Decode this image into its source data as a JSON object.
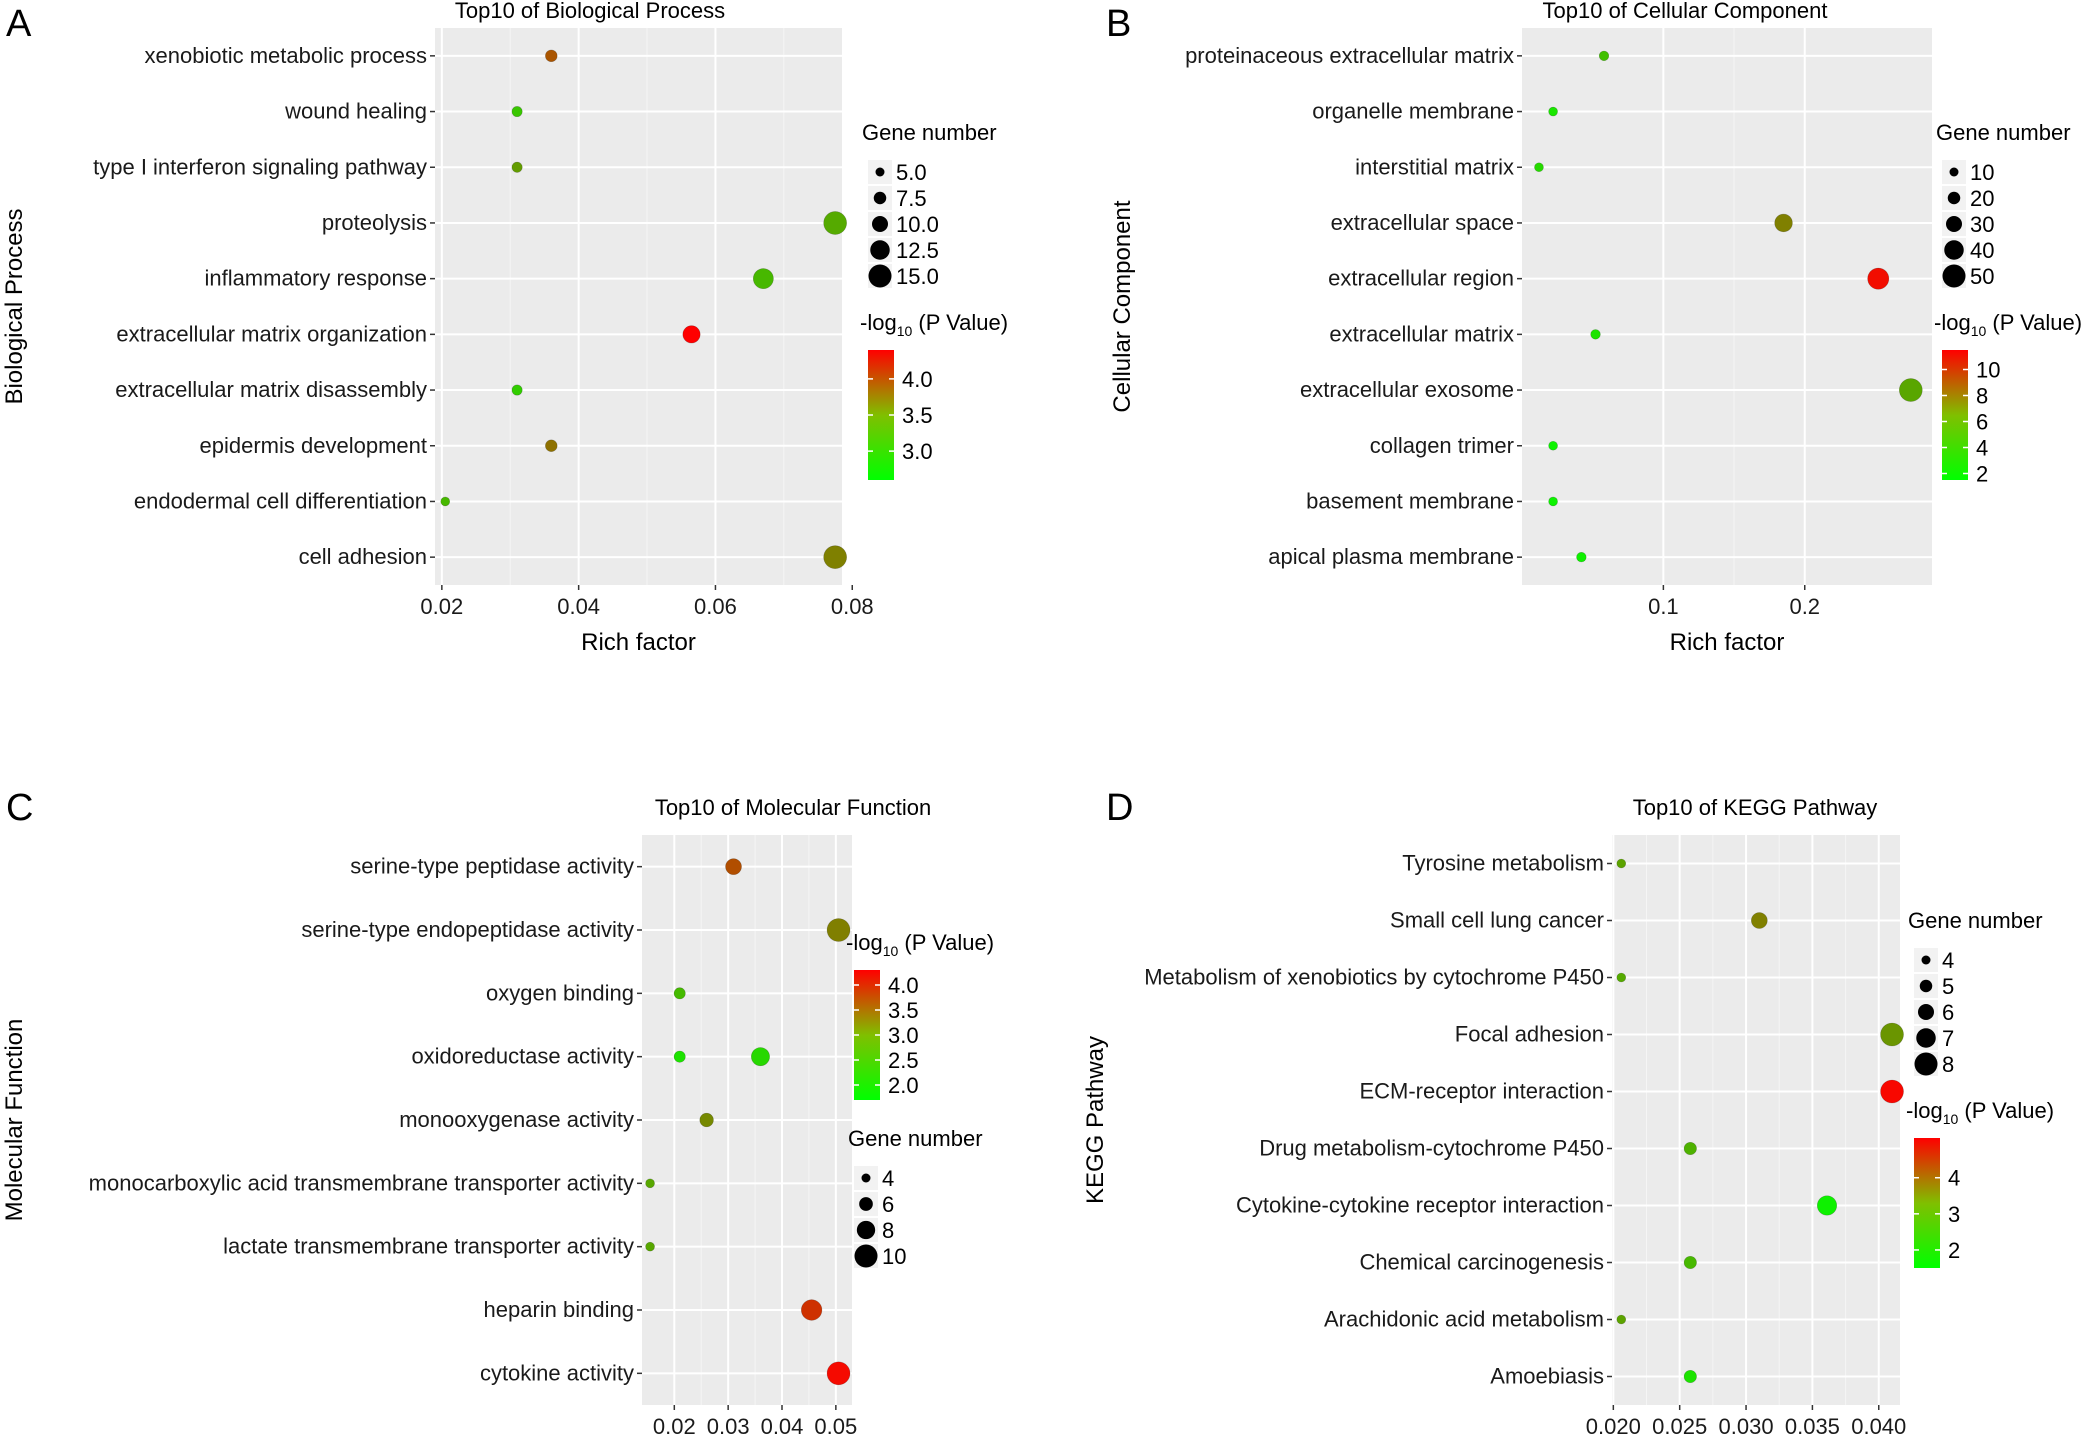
{
  "chart_data": [
    {
      "panel": "A",
      "type": "scatter",
      "title": "Top10 of Biological Process",
      "xlabel": "Rich factor",
      "ylabel": "Biological Process",
      "xlim": [
        0.019,
        0.0785
      ],
      "xticks": [
        0.02,
        0.04,
        0.06,
        0.08
      ],
      "xtick_labels": [
        "0.02",
        "0.04",
        "0.06",
        "0.08"
      ],
      "grid": true,
      "categories": [
        "xenobiotic metabolic process",
        "wound healing",
        "type I interferon signaling pathway",
        "proteolysis",
        "inflammatory response",
        "extracellular matrix organization",
        "extracellular matrix disassembly",
        "epidermis development",
        "endodermal cell differentiation",
        "cell adhesion"
      ],
      "x": [
        0.036,
        0.031,
        0.031,
        0.0775,
        0.067,
        0.0565,
        0.031,
        0.036,
        0.0205,
        0.0775
      ],
      "gene_number": [
        7,
        6,
        6,
        15,
        13,
        11,
        6,
        7,
        4,
        15
      ],
      "neg_log10_p": [
        3.8,
        3.0,
        3.3,
        3.2,
        3.1,
        4.4,
        2.95,
        3.6,
        3.1,
        3.5
      ],
      "size_legend": {
        "title": "Gene number",
        "values": [
          5.0,
          7.5,
          10.0,
          12.5,
          15.0
        ],
        "labels": [
          "5.0",
          "7.5",
          "10.0",
          "12.5",
          "15.0"
        ]
      },
      "color_legend": {
        "title_prefix": "-log",
        "title_sub": "10",
        "title_suffix": " (P Value)",
        "min": 2.6,
        "max": 4.4,
        "ticks": [
          3.0,
          3.5,
          4.0
        ],
        "labels": [
          "3.0",
          "3.5",
          "4.0"
        ]
      }
    },
    {
      "panel": "B",
      "type": "scatter",
      "title": "Top10 of Cellular Component",
      "xlabel": "Rich factor",
      "ylabel": "Cellular Component",
      "xlim": [
        0.0,
        0.29
      ],
      "xticks": [
        0.1,
        0.2
      ],
      "xtick_labels": [
        "0.1",
        "0.2"
      ],
      "grid": true,
      "categories": [
        "proteinaceous extracellular matrix",
        "organelle membrane",
        "interstitial matrix",
        "extracellular space",
        "extracellular region",
        "extracellular matrix",
        "extracellular exosome",
        "collagen trimer",
        "basement membrane",
        "apical plasma membrane"
      ],
      "x": [
        0.058,
        0.022,
        0.012,
        0.185,
        0.252,
        0.052,
        0.275,
        0.022,
        0.022,
        0.042
      ],
      "gene_number": [
        12,
        8,
        6,
        35,
        45,
        12,
        52,
        8,
        8,
        12
      ],
      "neg_log10_p": [
        4.0,
        2.5,
        3.0,
        6.5,
        11.0,
        2.6,
        5.0,
        2.0,
        2.0,
        2.1
      ],
      "size_legend": {
        "title": "Gene number",
        "values": [
          10,
          20,
          30,
          40,
          50
        ],
        "labels": [
          "10",
          "20",
          "30",
          "40",
          "50"
        ]
      },
      "color_legend": {
        "title_prefix": "-log",
        "title_sub": "10",
        "title_suffix": " (P Value)",
        "min": 1.5,
        "max": 11.5,
        "ticks": [
          2,
          4,
          6,
          8,
          10
        ],
        "labels": [
          "2",
          "4",
          "6",
          "8",
          "10"
        ]
      }
    },
    {
      "panel": "C",
      "type": "scatter",
      "title": "Top10 of Molecular Function",
      "xlabel": "Rich factor",
      "ylabel": "Molecular Function",
      "xlim": [
        0.014,
        0.053
      ],
      "xticks": [
        0.02,
        0.03,
        0.04,
        0.05
      ],
      "xtick_labels": [
        "0.02",
        "0.03",
        "0.04",
        "0.05"
      ],
      "grid": true,
      "categories": [
        "serine-type peptidase activity",
        "serine-type endopeptidase activity",
        "oxygen binding",
        "oxidoreductase activity",
        "monooxygenase activity",
        "monocarboxylic acid transmembrane transporter activity",
        "lactate transmembrane transporter activity",
        "heparin binding",
        "cytokine activity"
      ],
      "points": [
        {
          "cat": 0,
          "x": 0.031,
          "gene_number": 7,
          "neg_log10_p": 3.5
        },
        {
          "cat": 1,
          "x": 0.0505,
          "gene_number": 10,
          "neg_log10_p": 3.0
        },
        {
          "cat": 2,
          "x": 0.021,
          "gene_number": 5,
          "neg_log10_p": 2.4
        },
        {
          "cat": 3,
          "x": 0.021,
          "gene_number": 5,
          "neg_log10_p": 2.0
        },
        {
          "cat": 3,
          "x": 0.036,
          "gene_number": 8,
          "neg_log10_p": 2.1
        },
        {
          "cat": 4,
          "x": 0.026,
          "gene_number": 6,
          "neg_log10_p": 2.9
        },
        {
          "cat": 5,
          "x": 0.0155,
          "gene_number": 3,
          "neg_log10_p": 2.6
        },
        {
          "cat": 6,
          "x": 0.0155,
          "gene_number": 3,
          "neg_log10_p": 2.6
        },
        {
          "cat": 7,
          "x": 0.0455,
          "gene_number": 9,
          "neg_log10_p": 3.8
        },
        {
          "cat": 8,
          "x": 0.0505,
          "gene_number": 10,
          "neg_log10_p": 4.2
        }
      ],
      "size_legend": {
        "title": "Gene number",
        "values": [
          4,
          6,
          8,
          10
        ],
        "labels": [
          "4",
          "6",
          "8",
          "10"
        ]
      },
      "color_legend": {
        "title_prefix": "-log",
        "title_sub": "10",
        "title_suffix": " (P Value)",
        "min": 1.7,
        "max": 4.3,
        "ticks": [
          2.0,
          2.5,
          3.0,
          3.5,
          4.0
        ],
        "labels": [
          "2.0",
          "2.5",
          "3.0",
          "3.5",
          "4.0"
        ]
      }
    },
    {
      "panel": "D",
      "type": "scatter",
      "title": "Top10 of KEGG Pathway",
      "xlabel": "Rich factor",
      "ylabel": "KEGG Pathway",
      "xlim": [
        0.0199,
        0.0416
      ],
      "xticks": [
        0.02,
        0.025,
        0.03,
        0.035,
        0.04
      ],
      "xtick_labels": [
        "0.020",
        "0.025",
        "0.030",
        "0.035",
        "0.040"
      ],
      "grid": true,
      "categories": [
        "Tyrosine metabolism",
        "Small cell lung cancer",
        "Metabolism of xenobiotics by cytochrome P450",
        "Focal adhesion",
        "ECM-receptor interaction",
        "Drug metabolism-cytochrome P450",
        "Cytokine-cytokine receptor interaction",
        "Chemical carcinogenesis",
        "Arachidonic acid metabolism",
        "Amoebiasis"
      ],
      "x": [
        0.0206,
        0.031,
        0.0206,
        0.041,
        0.041,
        0.0258,
        0.0361,
        0.0258,
        0.0206,
        0.0258
      ],
      "gene_number": [
        4,
        6,
        4,
        8,
        8,
        5,
        7,
        5,
        4,
        5
      ],
      "neg_log10_p": [
        2.8,
        3.3,
        2.7,
        3.0,
        5.0,
        2.6,
        1.7,
        2.5,
        2.8,
        1.9
      ],
      "size_legend": {
        "title": "Gene number",
        "values": [
          4,
          5,
          6,
          7,
          8
        ],
        "labels": [
          "4",
          "5",
          "6",
          "7",
          "8"
        ]
      },
      "color_legend": {
        "title_prefix": "-log",
        "title_sub": "10",
        "title_suffix": " (P Value)",
        "min": 1.5,
        "max": 5.1,
        "ticks": [
          2,
          3,
          4
        ],
        "labels": [
          "2",
          "3",
          "4"
        ]
      }
    }
  ]
}
